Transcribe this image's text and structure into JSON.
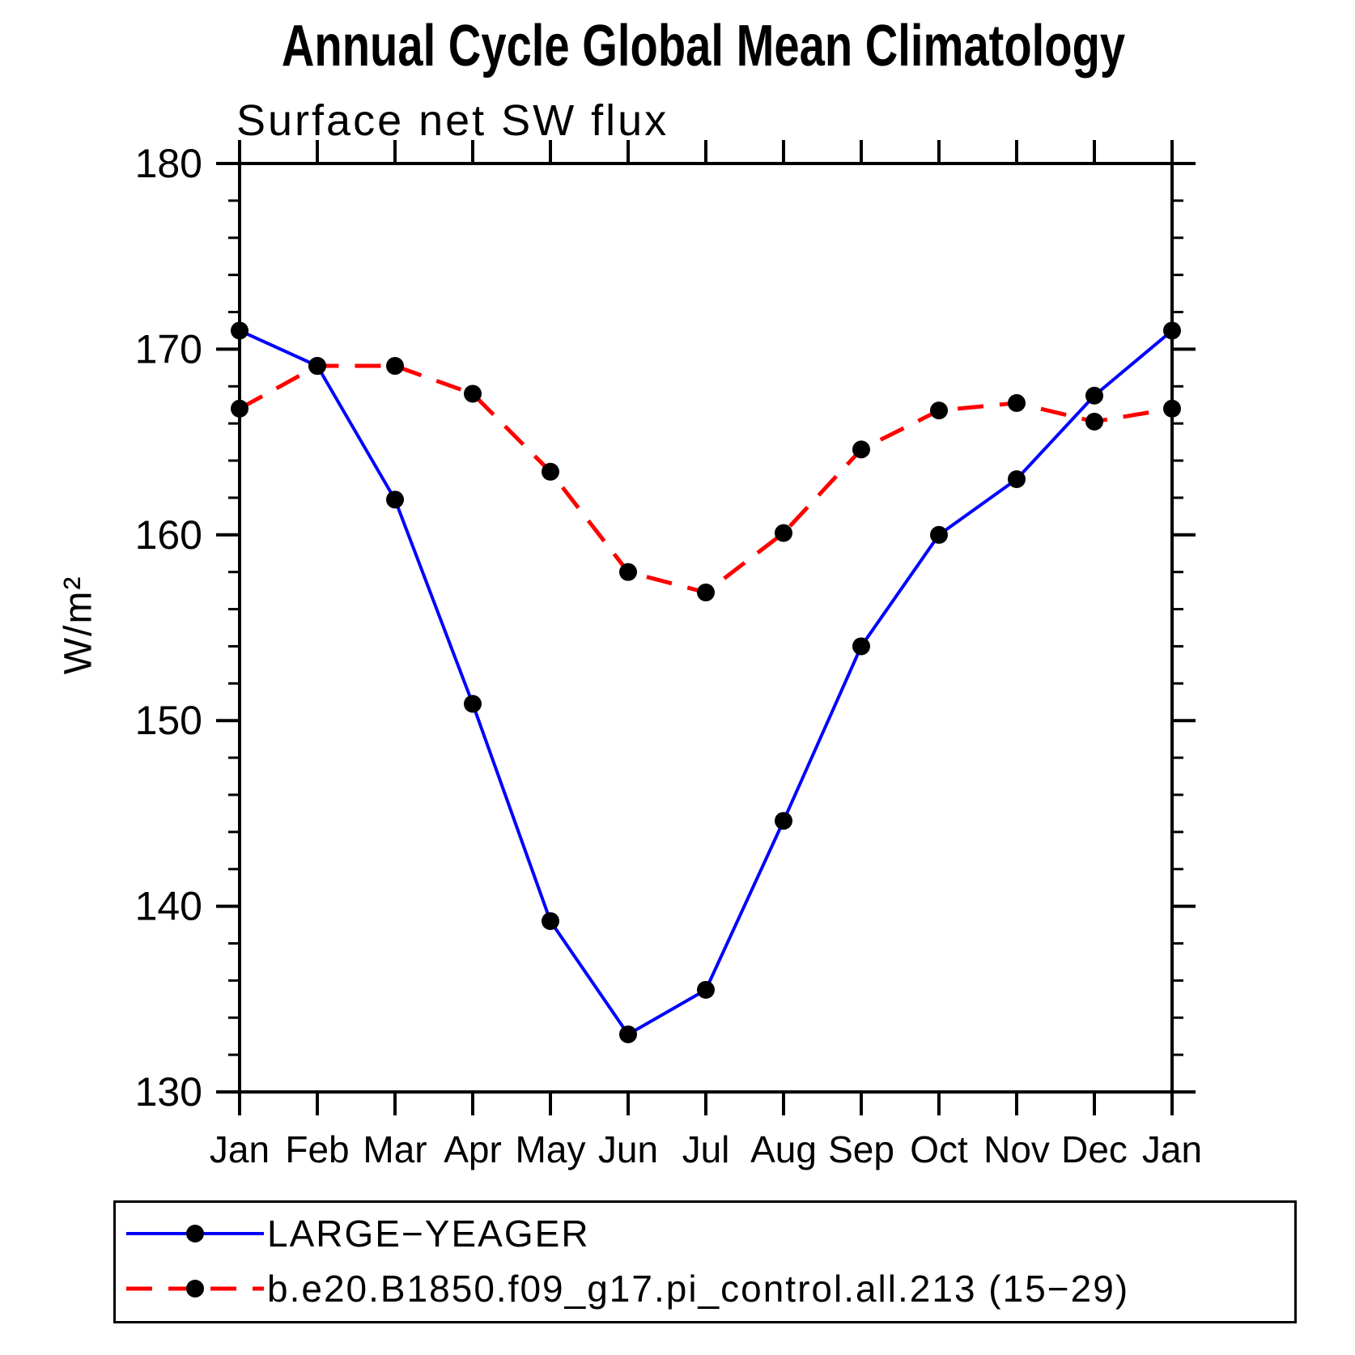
{
  "title": "Annual Cycle Global Mean Climatology",
  "subtitle": "Surface net SW flux",
  "ylabel": "W/m²",
  "chart_data": {
    "type": "line",
    "categories": [
      "Jan",
      "Feb",
      "Mar",
      "Apr",
      "May",
      "Jun",
      "Jul",
      "Aug",
      "Sep",
      "Oct",
      "Nov",
      "Dec",
      "Jan"
    ],
    "series": [
      {
        "name": "LARGE−YEAGER",
        "color": "#0000ff",
        "line_style": "solid",
        "marker": "black-circle",
        "values": [
          171.0,
          169.1,
          161.9,
          150.9,
          139.2,
          133.1,
          135.5,
          144.6,
          154.0,
          160.0,
          163.0,
          167.5,
          171.0
        ]
      },
      {
        "name": "b.e20.B1850.f09_g17.pi_control.all.213 (15−29)",
        "color": "#ff0000",
        "line_style": "dashed",
        "marker": "black-circle",
        "values": [
          166.8,
          169.1,
          169.1,
          167.6,
          163.4,
          158.0,
          156.9,
          160.1,
          164.6,
          166.7,
          167.1,
          166.1,
          166.8
        ]
      }
    ],
    "xlabel": "",
    "ylabel": "W/m²",
    "ylim": [
      130,
      180
    ],
    "y_major_ticks": [
      130,
      140,
      150,
      160,
      170,
      180
    ],
    "y_tick_labels": [
      "130",
      "140",
      "150",
      "160",
      "170",
      "180"
    ],
    "y_minor_step": 2,
    "grid": false,
    "legend_position": "bottom",
    "marker_color": "#000000",
    "axis_color": "#000000"
  }
}
